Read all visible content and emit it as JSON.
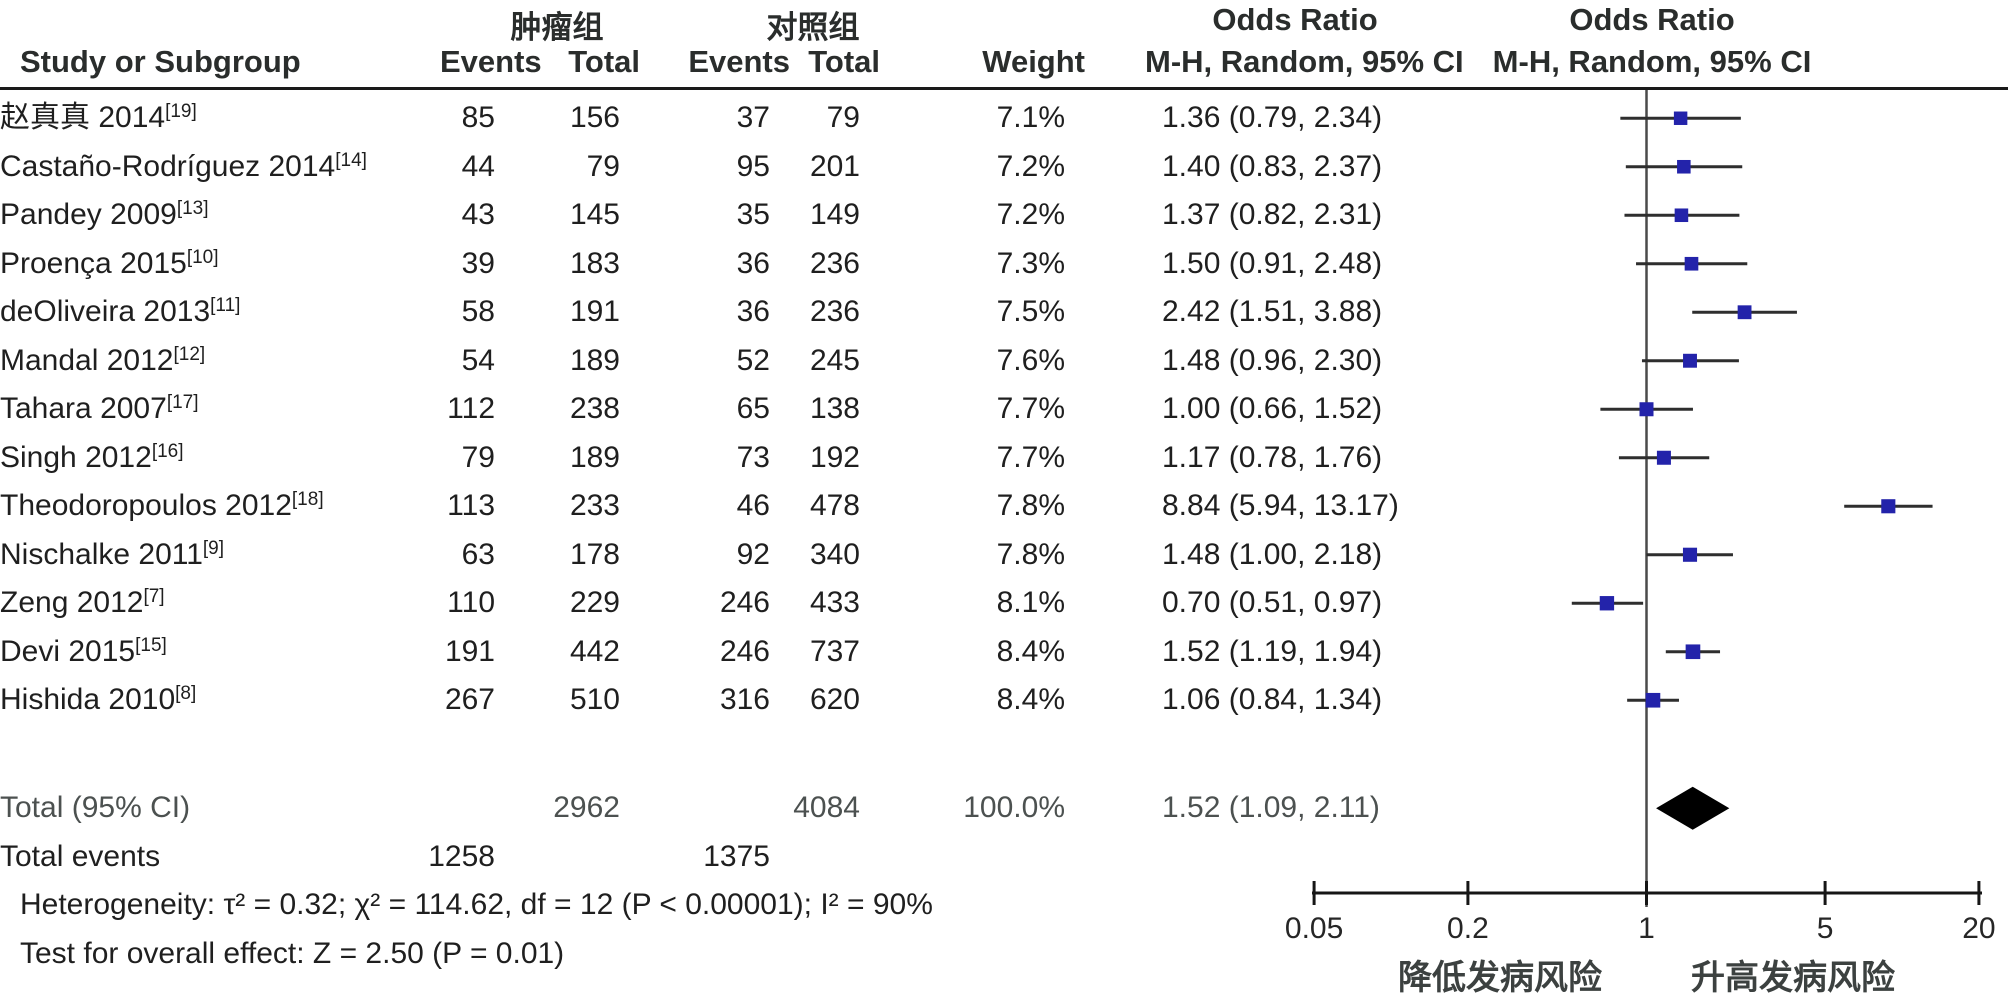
{
  "header": {
    "group_tumor": "肿瘤组",
    "group_control": "对照组",
    "or_title": "Odds Ratio",
    "study": "Study or Subgroup",
    "events": "Events",
    "total": "Total",
    "weight": "Weight",
    "mh_ci": "M-H, Random, 95% CI"
  },
  "colors": {
    "square": "#2323aa",
    "diamond": "#000000",
    "ci_line": "#2e2e2e",
    "no_effect_line": "#4a4a4a",
    "axis": "#161616",
    "text": "#1f1f1f",
    "muted_text": "#4c5150"
  },
  "chart_data": {
    "type": "scatter",
    "variant": "forest-plot",
    "effect_measure": "Odds Ratio, M-H, Random, 95% CI",
    "x_scale": "log",
    "axis": {
      "ticks": [
        0.05,
        0.2,
        1,
        5,
        20
      ],
      "tick_labels": [
        "0.05",
        "0.2",
        "1",
        "5",
        "20"
      ],
      "label_left": "降低发病风险",
      "label_right": "升高发病风险"
    },
    "studies": [
      {
        "name": "赵真真 2014",
        "ref": "[19]",
        "events_tumor": 85,
        "total_tumor": 156,
        "events_control": 37,
        "total_control": 79,
        "weight": "7.1%",
        "or": 1.36,
        "ci_low": 0.79,
        "ci_high": 2.34,
        "or_text": "1.36 (0.79, 2.34)"
      },
      {
        "name": "Castaño-Rodríguez 2014",
        "ref": "[14]",
        "events_tumor": 44,
        "total_tumor": 79,
        "events_control": 95,
        "total_control": 201,
        "weight": "7.2%",
        "or": 1.4,
        "ci_low": 0.83,
        "ci_high": 2.37,
        "or_text": "1.40 (0.83, 2.37)"
      },
      {
        "name": "Pandey 2009",
        "ref": "[13]",
        "events_tumor": 43,
        "total_tumor": 145,
        "events_control": 35,
        "total_control": 149,
        "weight": "7.2%",
        "or": 1.37,
        "ci_low": 0.82,
        "ci_high": 2.31,
        "or_text": "1.37 (0.82, 2.31)"
      },
      {
        "name": "Proença 2015",
        "ref": "[10]",
        "events_tumor": 39,
        "total_tumor": 183,
        "events_control": 36,
        "total_control": 236,
        "weight": "7.3%",
        "or": 1.5,
        "ci_low": 0.91,
        "ci_high": 2.48,
        "or_text": "1.50 (0.91, 2.48)"
      },
      {
        "name": "deOliveira 2013",
        "ref": "[11]",
        "events_tumor": 58,
        "total_tumor": 191,
        "events_control": 36,
        "total_control": 236,
        "weight": "7.5%",
        "or": 2.42,
        "ci_low": 1.51,
        "ci_high": 3.88,
        "or_text": "2.42 (1.51, 3.88)"
      },
      {
        "name": "Mandal 2012",
        "ref": "[12]",
        "events_tumor": 54,
        "total_tumor": 189,
        "events_control": 52,
        "total_control": 245,
        "weight": "7.6%",
        "or": 1.48,
        "ci_low": 0.96,
        "ci_high": 2.3,
        "or_text": "1.48 (0.96, 2.30)"
      },
      {
        "name": "Tahara 2007",
        "ref": "[17]",
        "events_tumor": 112,
        "total_tumor": 238,
        "events_control": 65,
        "total_control": 138,
        "weight": "7.7%",
        "or": 1.0,
        "ci_low": 0.66,
        "ci_high": 1.52,
        "or_text": "1.00 (0.66, 1.52)"
      },
      {
        "name": "Singh 2012",
        "ref": "[16]",
        "events_tumor": 79,
        "total_tumor": 189,
        "events_control": 73,
        "total_control": 192,
        "weight": "7.7%",
        "or": 1.17,
        "ci_low": 0.78,
        "ci_high": 1.76,
        "or_text": "1.17 (0.78, 1.76)"
      },
      {
        "name": "Theodoropoulos 2012",
        "ref": "[18]",
        "events_tumor": 113,
        "total_tumor": 233,
        "events_control": 46,
        "total_control": 478,
        "weight": "7.8%",
        "or": 8.84,
        "ci_low": 5.94,
        "ci_high": 13.17,
        "or_text": "8.84 (5.94, 13.17)"
      },
      {
        "name": "Nischalke 2011",
        "ref": "[9]",
        "events_tumor": 63,
        "total_tumor": 178,
        "events_control": 92,
        "total_control": 340,
        "weight": "7.8%",
        "or": 1.48,
        "ci_low": 1.0,
        "ci_high": 2.18,
        "or_text": "1.48 (1.00, 2.18)"
      },
      {
        "name": "Zeng 2012",
        "ref": "[7]",
        "events_tumor": 110,
        "total_tumor": 229,
        "events_control": 246,
        "total_control": 433,
        "weight": "8.1%",
        "or": 0.7,
        "ci_low": 0.51,
        "ci_high": 0.97,
        "or_text": "0.70 (0.51, 0.97)"
      },
      {
        "name": "Devi 2015",
        "ref": "[15]",
        "events_tumor": 191,
        "total_tumor": 442,
        "events_control": 246,
        "total_control": 737,
        "weight": "8.4%",
        "or": 1.52,
        "ci_low": 1.19,
        "ci_high": 1.94,
        "or_text": "1.52 (1.19, 1.94)"
      },
      {
        "name": "Hishida 2010",
        "ref": "[8]",
        "events_tumor": 267,
        "total_tumor": 510,
        "events_control": 316,
        "total_control": 620,
        "weight": "8.4%",
        "or": 1.06,
        "ci_low": 0.84,
        "ci_high": 1.34,
        "or_text": "1.06 (0.84, 1.34)"
      }
    ],
    "total": {
      "label": "Total (95% CI)",
      "total_tumor": 2962,
      "total_control": 4084,
      "weight": "100.0%",
      "or": 1.52,
      "ci_low": 1.09,
      "ci_high": 2.11,
      "or_text": "1.52 (1.09, 2.11)"
    },
    "total_events": {
      "label": "Total events",
      "events_tumor": 1258,
      "events_control": 1375
    },
    "heterogeneity": "Heterogeneity: τ² = 0.32; χ² = 114.62, df = 12 (P < 0.00001); I² = 90%",
    "overall_test": "Test for overall effect: Z = 2.50 (P = 0.01)"
  }
}
